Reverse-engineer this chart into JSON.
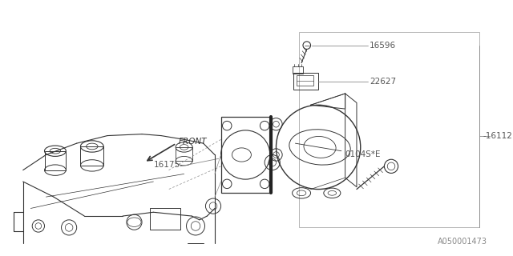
{
  "bg_color": "#ffffff",
  "line_color": "#333333",
  "text_color": "#333333",
  "label_color": "#555555",
  "watermark": "A050001473",
  "fig_width": 6.4,
  "fig_height": 3.2,
  "dpi": 100
}
